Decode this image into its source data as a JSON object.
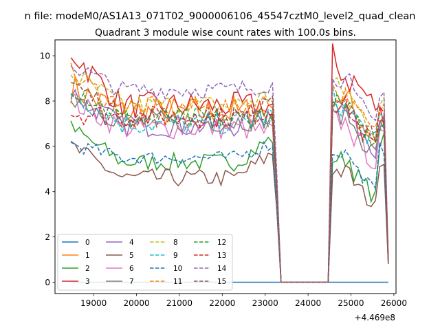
{
  "header": {
    "suptitle": "n file: modeM0/AS1A13_071T02_9000006106_45547cztM0_level2_quad_clean"
  },
  "chart_data": {
    "type": "line",
    "title": "Quadrant 3 module wise count rates with 100.0s bins.",
    "xlabel": "",
    "ylabel": "",
    "x_offset_label": "+4.469e8",
    "xlim": [
      18100,
      26050
    ],
    "ylim": [
      -0.5,
      10.7
    ],
    "xticks": [
      19000,
      20000,
      21000,
      22000,
      23000,
      24000,
      25000,
      26000
    ],
    "yticks": [
      0,
      2,
      4,
      6,
      8,
      10
    ],
    "grid": false,
    "legend_position": "lower-left",
    "legend_columns": 4,
    "segments": [
      {
        "x_start": 18470,
        "x_end": 23300,
        "step": 100
      },
      {
        "x_start": 24470,
        "x_end": 25870,
        "step": 100
      }
    ],
    "gap": {
      "x_start": 23370,
      "x_end": 24470,
      "value": 0
    },
    "series": [
      {
        "name": "0",
        "color": "#1f77b4",
        "dash": "solid",
        "level": 0.0,
        "first": 0.0,
        "end": 0.0,
        "second": 0.0,
        "amp": 0
      },
      {
        "name": "1",
        "color": "#ff7f0e",
        "dash": "solid",
        "level": 7.5,
        "first": 8.6,
        "end": 7.6,
        "second": 8.4,
        "amp": 0.7
      },
      {
        "name": "2",
        "color": "#2ca02c",
        "dash": "solid",
        "level": 5.3,
        "first": 6.8,
        "end": 6.5,
        "second": 5.5,
        "amp": 0.4
      },
      {
        "name": "3",
        "color": "#d62728",
        "dash": "solid",
        "level": 7.8,
        "first": 10.2,
        "end": 7.8,
        "second": 10.0,
        "amp": 0.6
      },
      {
        "name": "4",
        "color": "#9467bd",
        "dash": "solid",
        "level": 6.9,
        "first": 8.4,
        "end": 7.5,
        "second": 8.0,
        "amp": 0.5
      },
      {
        "name": "5",
        "color": "#8c564b",
        "dash": "solid",
        "level": 4.6,
        "first": 6.0,
        "end": 5.8,
        "second": 5.0,
        "amp": 0.4
      },
      {
        "name": "6",
        "color": "#e377c2",
        "dash": "solid",
        "level": 6.8,
        "first": 8.0,
        "end": 6.6,
        "second": 7.2,
        "amp": 0.5
      },
      {
        "name": "7",
        "color": "#7f7f7f",
        "dash": "solid",
        "level": 7.1,
        "first": 8.3,
        "end": 7.3,
        "second": 7.6,
        "amp": 0.5
      },
      {
        "name": "8",
        "color": "#bcbd22",
        "dash": "dashed",
        "level": 7.8,
        "first": 9.2,
        "end": 8.3,
        "second": 8.8,
        "amp": 0.5
      },
      {
        "name": "9",
        "color": "#17becf",
        "dash": "dashed",
        "level": 7.0,
        "first": 8.4,
        "end": 7.4,
        "second": 8.2,
        "amp": 0.5
      },
      {
        "name": "10",
        "color": "#1f77b4",
        "dash": "dashed",
        "level": 5.5,
        "first": 6.1,
        "end": 6.2,
        "second": 5.8,
        "amp": 0.3
      },
      {
        "name": "11",
        "color": "#ff7f0e",
        "dash": "dashed",
        "level": 7.7,
        "first": 9.2,
        "end": 8.0,
        "second": 8.6,
        "amp": 0.5
      },
      {
        "name": "12",
        "color": "#2ca02c",
        "dash": "dashed",
        "level": 7.2,
        "first": 8.7,
        "end": 7.4,
        "second": 8.0,
        "amp": 0.5
      },
      {
        "name": "13",
        "color": "#d62728",
        "dash": "dashed",
        "level": 7.3,
        "first": 7.5,
        "end": 7.6,
        "second": 8.0,
        "amp": 0.5
      },
      {
        "name": "14",
        "color": "#9467bd",
        "dash": "dashed",
        "level": 8.5,
        "first": 9.6,
        "end": 8.8,
        "second": 9.2,
        "amp": 0.4
      },
      {
        "name": "15",
        "color": "#8c564b",
        "dash": "dashed",
        "level": 7.3,
        "first": 8.8,
        "end": 7.8,
        "second": 8.4,
        "amp": 0.5
      }
    ]
  }
}
